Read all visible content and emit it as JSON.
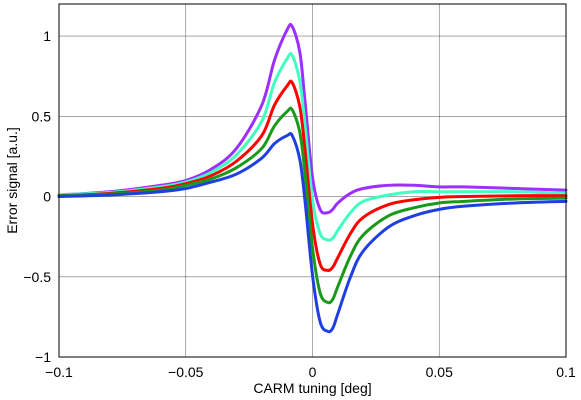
{
  "chart_data": {
    "type": "line",
    "title": "",
    "xlabel": "CARM tuning [deg]",
    "ylabel": "Error signal [a.u.]",
    "xlim": [
      -0.1,
      0.1
    ],
    "ylim": [
      -1,
      1.2
    ],
    "grid": true,
    "legend": "none",
    "x_ticks": [
      -0.1,
      -0.05,
      0,
      0.05,
      0.1
    ],
    "x_tick_labels": [
      "−0.1",
      "−0.05",
      "0",
      "0.05",
      "0.1"
    ],
    "y_ticks": [
      -1,
      -0.5,
      0,
      0.5,
      1
    ],
    "y_tick_labels": [
      "−1",
      "−0.5",
      "0",
      "0.5",
      "1"
    ],
    "x": [
      -0.1,
      -0.08,
      -0.06,
      -0.05,
      -0.04,
      -0.03,
      -0.02,
      -0.015,
      -0.01,
      -0.008,
      -0.005,
      -0.003,
      0,
      0.003,
      0.006,
      0.008,
      0.01,
      0.015,
      0.02,
      0.03,
      0.04,
      0.05,
      0.06,
      0.08,
      0.1
    ],
    "series": [
      {
        "color": "#9b30ff",
        "values": [
          0.01,
          0.03,
          0.07,
          0.1,
          0.17,
          0.3,
          0.57,
          0.85,
          1.04,
          1.06,
          0.9,
          0.6,
          0.12,
          -0.08,
          -0.1,
          -0.08,
          -0.04,
          0.02,
          0.05,
          0.07,
          0.07,
          0.06,
          0.06,
          0.05,
          0.04
        ]
      },
      {
        "color": "#40ffc0",
        "values": [
          0.01,
          0.025,
          0.06,
          0.09,
          0.15,
          0.26,
          0.47,
          0.71,
          0.86,
          0.88,
          0.72,
          0.45,
          -0.02,
          -0.23,
          -0.27,
          -0.26,
          -0.21,
          -0.1,
          -0.03,
          0.01,
          0.03,
          0.03,
          0.03,
          0.03,
          0.02
        ]
      },
      {
        "color": "#ff0000",
        "values": [
          0.005,
          0.02,
          0.05,
          0.08,
          0.13,
          0.22,
          0.38,
          0.57,
          0.69,
          0.71,
          0.56,
          0.3,
          -0.17,
          -0.42,
          -0.46,
          -0.44,
          -0.38,
          -0.23,
          -0.13,
          -0.05,
          -0.02,
          -0.005,
          0.0,
          0.005,
          0.005
        ]
      },
      {
        "color": "#1a9a1a",
        "values": [
          0.005,
          0.015,
          0.04,
          0.07,
          0.11,
          0.18,
          0.3,
          0.44,
          0.53,
          0.54,
          0.4,
          0.15,
          -0.32,
          -0.6,
          -0.66,
          -0.64,
          -0.56,
          -0.37,
          -0.24,
          -0.12,
          -0.07,
          -0.04,
          -0.03,
          -0.015,
          -0.01
        ]
      },
      {
        "color": "#1f3fe0",
        "values": [
          0.0,
          0.01,
          0.03,
          0.05,
          0.09,
          0.14,
          0.24,
          0.33,
          0.38,
          0.38,
          0.23,
          -0.02,
          -0.49,
          -0.78,
          -0.84,
          -0.82,
          -0.73,
          -0.5,
          -0.34,
          -0.19,
          -0.12,
          -0.08,
          -0.06,
          -0.04,
          -0.03
        ]
      }
    ]
  }
}
